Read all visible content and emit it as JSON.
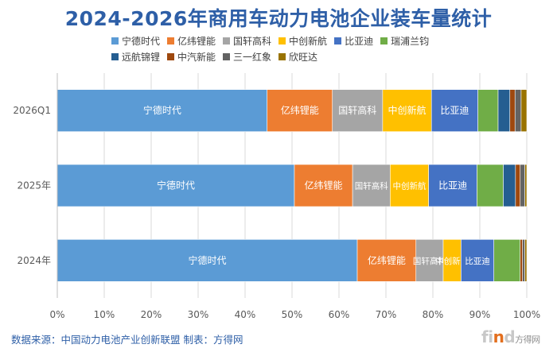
{
  "chart_data": {
    "type": "bar",
    "orientation": "horizontal",
    "stacked": true,
    "title": "2024-2026年商用车动力电池企业装车量统计",
    "categories": [
      "2026Q1",
      "2025年",
      "2024年"
    ],
    "series": [
      {
        "name": "宁德时代",
        "color": "#5B9BD5",
        "values": [
          44.7,
          50.5,
          63.9
        ],
        "show_label": true
      },
      {
        "name": "亿纬锂能",
        "color": "#ED7D31",
        "values": [
          13.9,
          12.4,
          12.5
        ],
        "show_label": true
      },
      {
        "name": "国轩高科",
        "color": "#A5A5A5",
        "values": [
          10.7,
          8.0,
          5.8
        ],
        "show_label": true
      },
      {
        "name": "中创新航",
        "color": "#FFC000",
        "values": [
          10.4,
          8.2,
          3.8
        ],
        "show_label": true
      },
      {
        "name": "比亚迪",
        "color": "#4472C4",
        "values": [
          9.9,
          10.3,
          7.0
        ],
        "show_label": true
      },
      {
        "name": "瑞浦兰钧",
        "color": "#70AD47",
        "values": [
          4.3,
          5.6,
          5.6
        ],
        "show_label": false
      },
      {
        "name": "远航锦锂",
        "color": "#255E91",
        "values": [
          2.5,
          2.6,
          0.0
        ],
        "show_label": false
      },
      {
        "name": "中汽新能",
        "color": "#9E480E",
        "values": [
          1.1,
          1.0,
          0.5
        ],
        "show_label": false
      },
      {
        "name": "三一红象",
        "color": "#636363",
        "values": [
          1.3,
          1.0,
          0.5
        ],
        "show_label": false
      },
      {
        "name": "欣旺达",
        "color": "#997300",
        "values": [
          1.2,
          0.4,
          0.4
        ],
        "show_label": false
      }
    ],
    "xlim": [
      0,
      100
    ],
    "xticks": [
      0,
      10,
      20,
      30,
      40,
      50,
      60,
      70,
      80,
      90,
      100
    ],
    "tick_suffix": "%",
    "grid": true,
    "legend_position": "top"
  },
  "footer": {
    "source": "数据来源：中国动力电池产业创新联盟 制表：方得网"
  },
  "watermark": {
    "logo_main": "fi",
    "logo_accent": "n",
    "logo_end": "d",
    "brand": "方得网"
  }
}
